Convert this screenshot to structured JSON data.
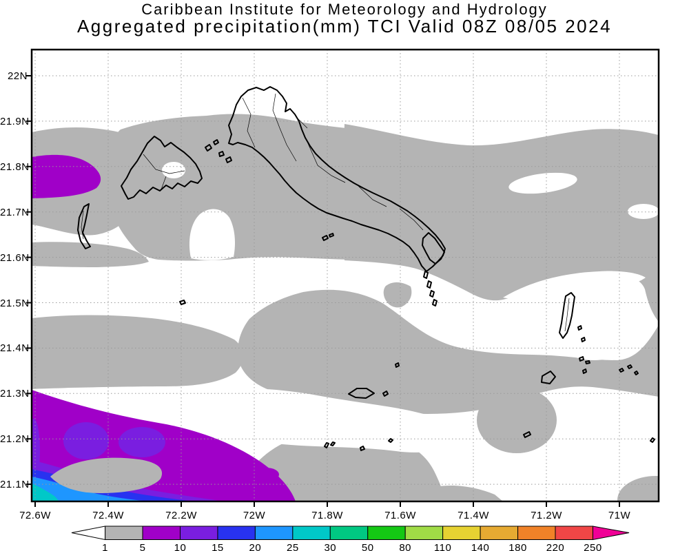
{
  "title": {
    "line1": "Caribbean Institute for Meteorology and Hydrology",
    "line2": "Aggregated precipitation(mm) TCI Valid 08Z 08/05 2024"
  },
  "axes": {
    "lat_labels": [
      "22N",
      "21.9N",
      "21.8N",
      "21.7N",
      "21.6N",
      "21.5N",
      "21.4N",
      "21.3N",
      "21.2N",
      "21.1N"
    ],
    "lon_labels": [
      "72.6W",
      "72.4W",
      "72.2W",
      "72W",
      "71.8W",
      "71.6W",
      "71.4W",
      "71.2W",
      "71W"
    ]
  },
  "colorbar": {
    "labels": [
      "1",
      "5",
      "10",
      "15",
      "20",
      "25",
      "30",
      "50",
      "80",
      "110",
      "140",
      "180",
      "220",
      "250"
    ],
    "segment_colors": [
      "#b4b4b4",
      "#a000c8",
      "#7a1ee0",
      "#2832f0",
      "#1e96ff",
      "#00c8c8",
      "#00c882",
      "#14c814",
      "#a0dc46",
      "#e6d232",
      "#e6aa32",
      "#f08228",
      "#f04646"
    ],
    "left_arrow_color": "#ffffff",
    "right_arrow_color": "#f00096"
  },
  "map_colors": {
    "background": "#ffffff",
    "band_1_5": "#b4b4b4",
    "band_5_10": "#a000c8",
    "band_10_15": "#7a1ee0",
    "band_15_20": "#2832f0",
    "band_20_25": "#1e96ff",
    "band_25_30": "#00c8c8",
    "coastline": "#000000",
    "grid": "#999999"
  },
  "chart_data": {
    "type": "heatmap",
    "title": "Aggregated precipitation(mm) TCI Valid 08Z 08/05 2024",
    "subtitle": "Caribbean Institute for Meteorology and Hydrology",
    "units": "mm",
    "valid_time": "08Z 08/05 2024",
    "region_code": "TCI",
    "lon_ticks": [
      "72.6W",
      "72.4W",
      "72.2W",
      "72W",
      "71.8W",
      "71.6W",
      "71.4W",
      "71.2W",
      "71W"
    ],
    "lat_ticks": [
      "22N",
      "21.9N",
      "21.8N",
      "21.7N",
      "21.6N",
      "21.5N",
      "21.4N",
      "21.3N",
      "21.2N",
      "21.1N"
    ],
    "contour_levels_mm": [
      1,
      5,
      10,
      15,
      20,
      25,
      30,
      50,
      80,
      110,
      140,
      180,
      220,
      250
    ],
    "legend_position": "bottom",
    "grid": "dotted, 0.1 deg latitude / 0.2 deg longitude",
    "observed_features": [
      {
        "range_mm": "1-5",
        "color": "#b4b4b4",
        "where": "broad east-west gray bands across most of the domain around 21.75N, 21.45N and 21.15N"
      },
      {
        "range_mm": "5-10",
        "color": "#a000c8",
        "where": "blob on west edge near 72.6W 21.78N; large area bottom-left near 72.5W-72.25W 21.05-21.3N; small spot near 72W 21.12N"
      },
      {
        "range_mm": "10-15",
        "color": "#7a1ee0",
        "where": "cores inside bottom-left purple area near 72.45W 21.2N"
      },
      {
        "range_mm": "15-30",
        "color": "#2832f0 / #1e96ff / #00c8c8",
        "where": "maximum at extreme bottom-left corner near 72.6W 21.06N"
      },
      {
        "range_mm": "0-1",
        "color": "#ffffff",
        "where": "top of domain above 21.85N, mid-band near 21.55N, and lower-right gaps"
      }
    ]
  }
}
